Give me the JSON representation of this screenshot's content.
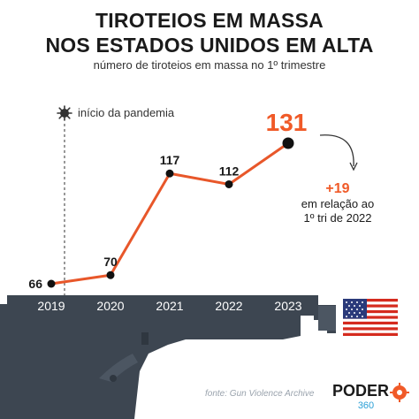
{
  "header": {
    "title_line1": "TIROTEIOS EM MASSA",
    "title_line2": "NOS ESTADOS UNIDOS EM ALTA",
    "subtitle": "número de tiroteios em massa no 1º trimestre"
  },
  "chart_data": {
    "type": "line",
    "categories": [
      "2019",
      "2020",
      "2021",
      "2022",
      "2023"
    ],
    "values": [
      66,
      70,
      117,
      112,
      131
    ],
    "value_labels": [
      "66",
      "70",
      "117",
      "112",
      "131"
    ],
    "title": "",
    "xlabel": "",
    "ylabel": "",
    "ylim": [
      60,
      135
    ],
    "grid": false,
    "annotations": {
      "pandemic_marker": "início da pandemia",
      "delta": "+19",
      "delta_text_line1": "em relação ao",
      "delta_text_line2": "1º tri de 2022"
    }
  },
  "footer": {
    "source": "fonte: Gun Violence Archive",
    "brand_main": "PODER",
    "brand_sub": "360"
  },
  "colors": {
    "line": "#e8572a",
    "highlight": "#f05a28",
    "gun_dark": "#3d4651",
    "gun_light": "#4c5662",
    "axis_text": "#ffffff",
    "text": "#1a1a1a"
  },
  "icons": {
    "pandemic": "virus-icon",
    "arrow": "curved-arrow-icon",
    "flag": "us-flag-icon",
    "brand": "poder360-logo-icon"
  }
}
